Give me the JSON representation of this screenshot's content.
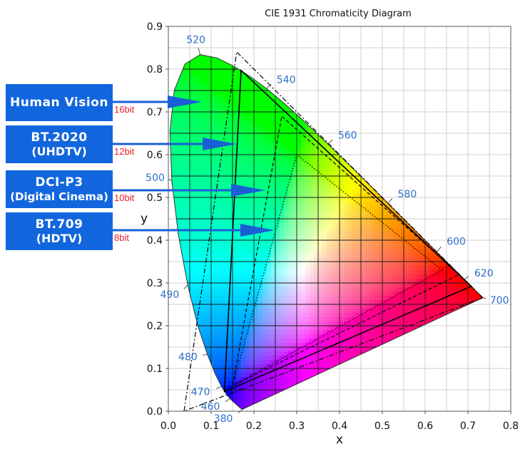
{
  "chart_data": {
    "type": "scatter",
    "title": "CIE 1931 Chromaticity Diagram",
    "xlabel": "x",
    "ylabel": "y",
    "xlim": [
      0.0,
      0.8
    ],
    "ylim": [
      0.0,
      0.9
    ],
    "x_ticks": [
      "0.0",
      "0.1",
      "0.2",
      "0.3",
      "0.4",
      "0.5",
      "0.6",
      "0.7",
      "0.8"
    ],
    "y_ticks": [
      "0.0",
      "0.1",
      "0.2",
      "0.3",
      "0.4",
      "0.5",
      "0.6",
      "0.7",
      "0.8",
      "0.9"
    ],
    "grid": true,
    "spectral_locus": [
      [
        0.1741,
        0.005
      ],
      [
        0.1738,
        0.0049
      ],
      [
        0.1736,
        0.005
      ],
      [
        0.1733,
        0.0048
      ],
      [
        0.173,
        0.0048
      ],
      [
        0.1726,
        0.0048
      ],
      [
        0.1721,
        0.0048
      ],
      [
        0.1714,
        0.0051
      ],
      [
        0.1703,
        0.0058
      ],
      [
        0.1689,
        0.0069
      ],
      [
        0.1669,
        0.0086
      ],
      [
        0.1644,
        0.0109
      ],
      [
        0.1611,
        0.0138
      ],
      [
        0.1566,
        0.0177
      ],
      [
        0.151,
        0.0227
      ],
      [
        0.144,
        0.0297
      ],
      [
        0.1355,
        0.0399
      ],
      [
        0.1241,
        0.0578
      ],
      [
        0.1096,
        0.0868
      ],
      [
        0.0913,
        0.1327
      ],
      [
        0.0687,
        0.2007
      ],
      [
        0.0454,
        0.295
      ],
      [
        0.0235,
        0.4127
      ],
      [
        0.0082,
        0.5384
      ],
      [
        0.0039,
        0.6548
      ],
      [
        0.0139,
        0.7502
      ],
      [
        0.0389,
        0.812
      ],
      [
        0.0743,
        0.8338
      ],
      [
        0.1142,
        0.8262
      ],
      [
        0.1547,
        0.8059
      ],
      [
        0.1929,
        0.7816
      ],
      [
        0.2296,
        0.7543
      ],
      [
        0.2658,
        0.7243
      ],
      [
        0.3016,
        0.6923
      ],
      [
        0.3373,
        0.6589
      ],
      [
        0.3731,
        0.6245
      ],
      [
        0.4087,
        0.5896
      ],
      [
        0.4441,
        0.5547
      ],
      [
        0.4788,
        0.5202
      ],
      [
        0.5125,
        0.4866
      ],
      [
        0.5448,
        0.4544
      ],
      [
        0.5752,
        0.4242
      ],
      [
        0.6029,
        0.3965
      ],
      [
        0.627,
        0.3725
      ],
      [
        0.6482,
        0.3514
      ],
      [
        0.6658,
        0.334
      ],
      [
        0.6801,
        0.3197
      ],
      [
        0.6915,
        0.3083
      ],
      [
        0.7006,
        0.2993
      ],
      [
        0.7079,
        0.292
      ],
      [
        0.714,
        0.2859
      ],
      [
        0.719,
        0.2809
      ],
      [
        0.723,
        0.277
      ],
      [
        0.726,
        0.274
      ],
      [
        0.7283,
        0.2717
      ],
      [
        0.73,
        0.27
      ],
      [
        0.7311,
        0.2689
      ],
      [
        0.732,
        0.268
      ],
      [
        0.7327,
        0.2673
      ],
      [
        0.7334,
        0.2666
      ],
      [
        0.734,
        0.266
      ],
      [
        0.7344,
        0.2656
      ],
      [
        0.7347,
        0.2653
      ]
    ],
    "wavelength_labels": [
      {
        "label": "380",
        "x": 0.1741,
        "y": 0.005
      },
      {
        "label": "460",
        "x": 0.144,
        "y": 0.0297
      },
      {
        "label": "470",
        "x": 0.1241,
        "y": 0.0578
      },
      {
        "label": "480",
        "x": 0.0913,
        "y": 0.1327
      },
      {
        "label": "490",
        "x": 0.0454,
        "y": 0.295
      },
      {
        "label": "500",
        "x": 0.0082,
        "y": 0.5384
      },
      {
        "label": "520",
        "x": 0.0743,
        "y": 0.8338
      },
      {
        "label": "540",
        "x": 0.2296,
        "y": 0.7543
      },
      {
        "label": "560",
        "x": 0.3731,
        "y": 0.6245
      },
      {
        "label": "580",
        "x": 0.5125,
        "y": 0.4866
      },
      {
        "label": "600",
        "x": 0.627,
        "y": 0.3725
      },
      {
        "label": "620",
        "x": 0.6915,
        "y": 0.3083
      },
      {
        "label": "700",
        "x": 0.7347,
        "y": 0.2653
      }
    ],
    "series": [
      {
        "name": "Human Vision",
        "bit_depth": "16bit",
        "style": "dashdot",
        "primaries": [
          [
            0.7347,
            0.2653
          ],
          [
            0.1596,
            0.8404
          ],
          [
            0.0366,
            0.0001
          ]
        ]
      },
      {
        "name": "BT.2020 (UHDTV)",
        "bit_depth": "12bit",
        "style": "solid",
        "primaries": [
          [
            0.708,
            0.292
          ],
          [
            0.17,
            0.797
          ],
          [
            0.131,
            0.046
          ]
        ]
      },
      {
        "name": "DCI-P3 (Digital Cinema)",
        "bit_depth": "10bit",
        "style": "dashed",
        "primaries": [
          [
            0.68,
            0.32
          ],
          [
            0.265,
            0.69
          ],
          [
            0.15,
            0.06
          ]
        ]
      },
      {
        "name": "BT.709 (HDTV)",
        "bit_depth": "8bit",
        "style": "dotted",
        "primaries": [
          [
            0.64,
            0.33
          ],
          [
            0.3,
            0.6
          ],
          [
            0.15,
            0.06
          ]
        ]
      }
    ]
  },
  "callouts": [
    {
      "line1": "Human Vision",
      "line2": "",
      "bits": "16bit"
    },
    {
      "line1": "BT.2020",
      "line2": "(UHDTV)",
      "bits": "12bit"
    },
    {
      "line1": "DCI-P3",
      "line2": "(Digital Cinema)",
      "bits": "10bit"
    },
    {
      "line1": "BT.709",
      "line2": "(HDTV)",
      "bits": "8bit"
    }
  ],
  "colors": {
    "callout_box": "#1266dd",
    "arrow": "#1a5fd6",
    "bit_text": "#e8202a",
    "wavelength_text": "#2f6fc8"
  }
}
